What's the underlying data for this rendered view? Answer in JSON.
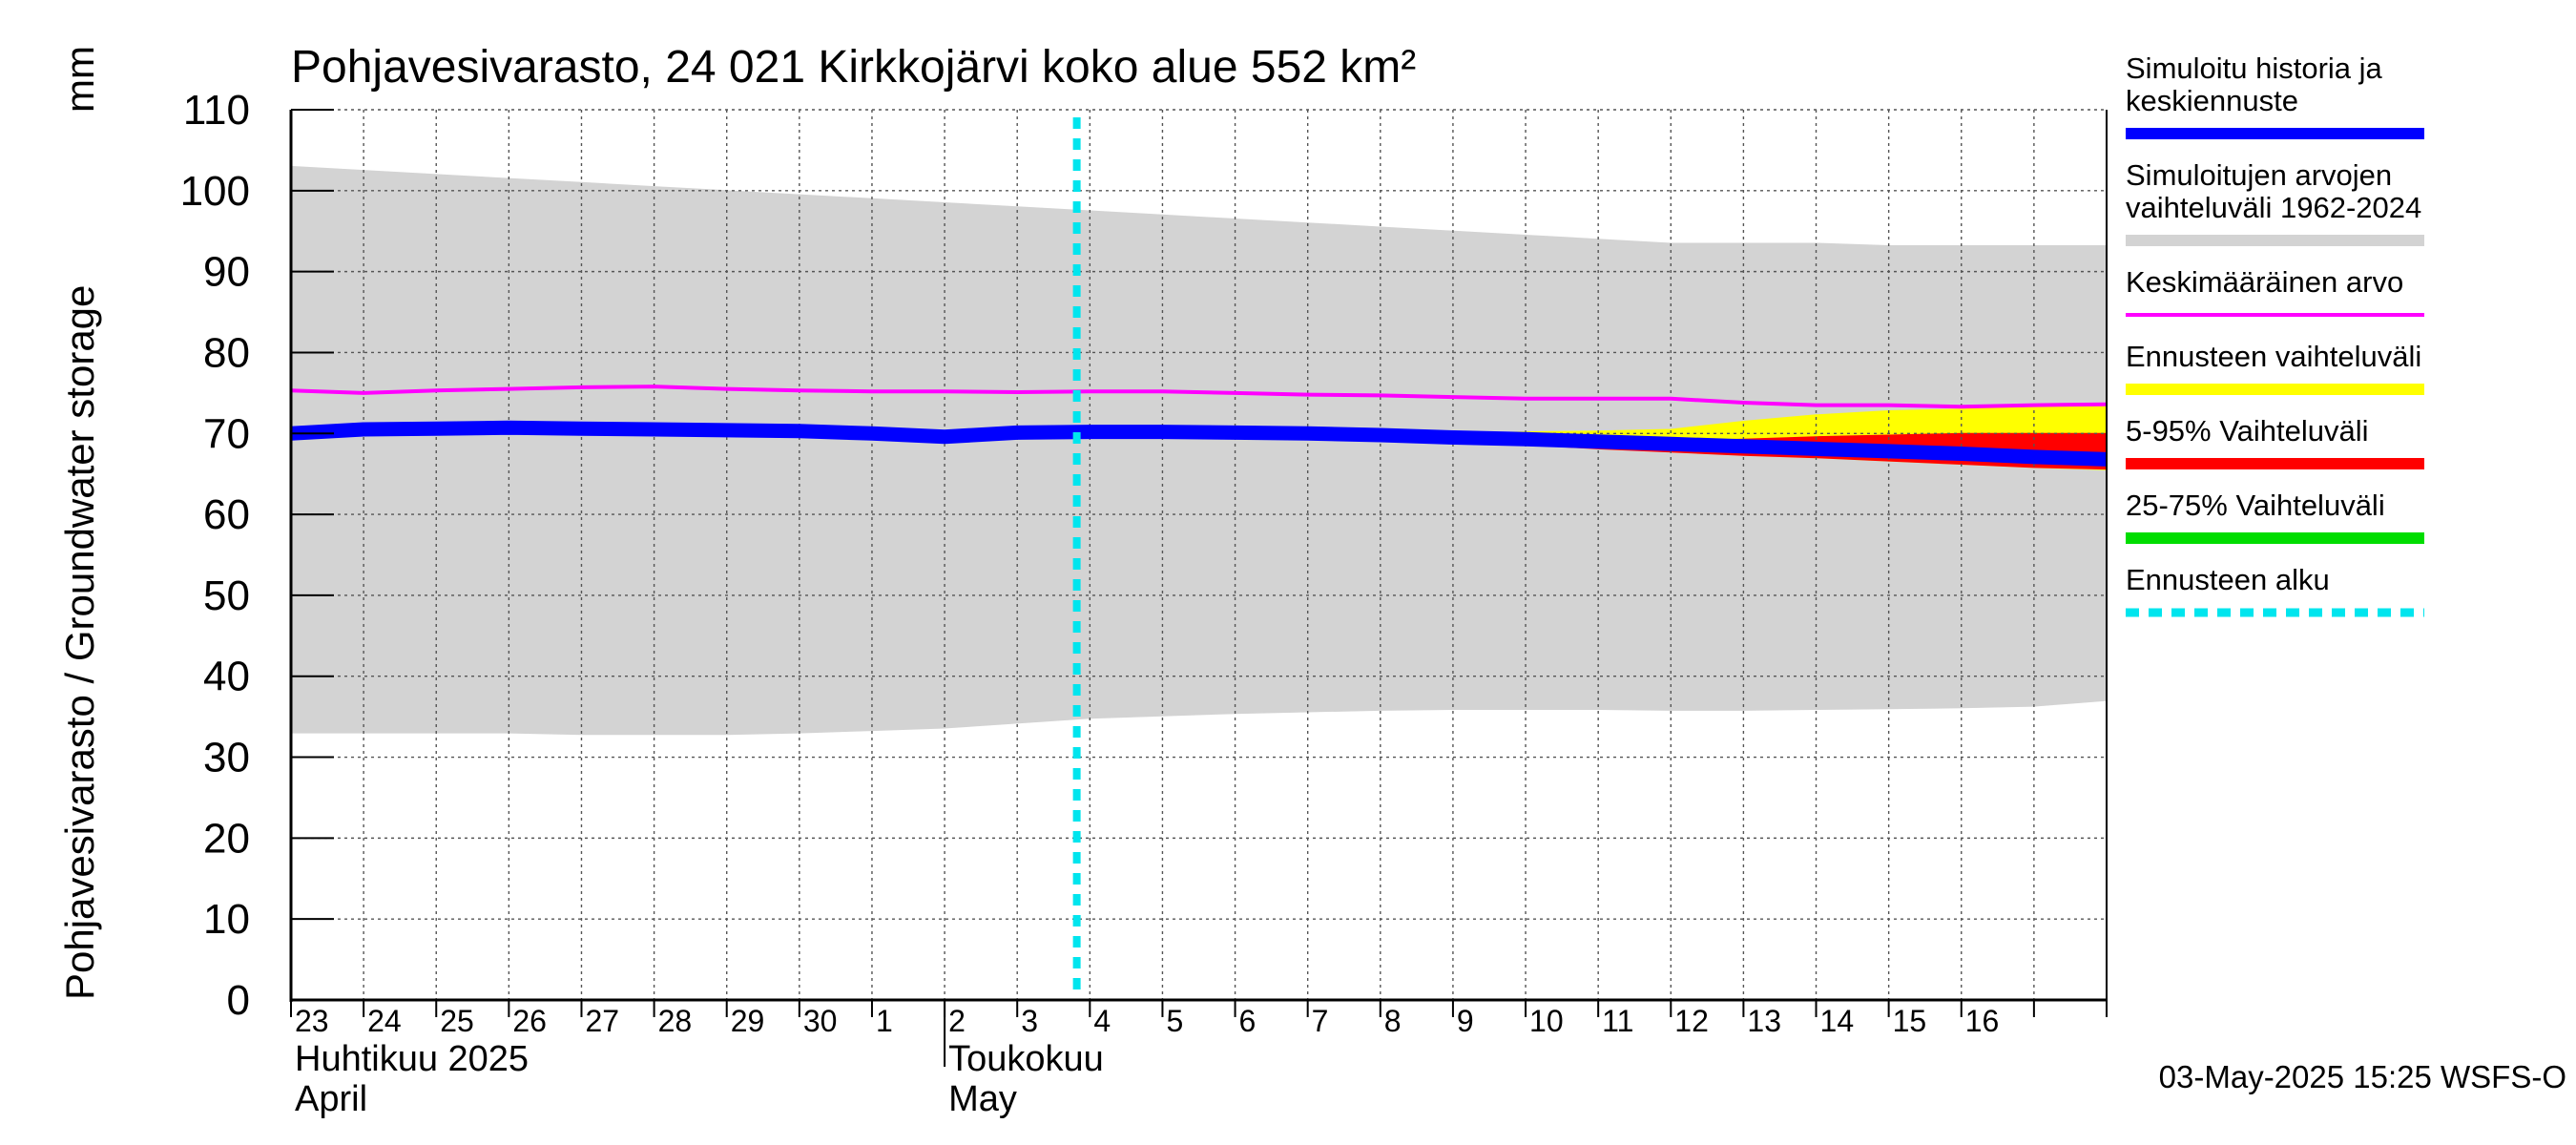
{
  "chart_data": {
    "type": "area",
    "title": "Pohjavesivarasto, 24 021 Kirkkojärvi koko alue 552 km²",
    "ylabel": "Pohjavesivarasto / Groundwater storage",
    "yunit": "mm",
    "ylim": [
      0,
      110
    ],
    "yticks": [
      0,
      10,
      20,
      30,
      40,
      50,
      60,
      70,
      80,
      90,
      100,
      110
    ],
    "grid": true,
    "x_start": "2025-04-22",
    "x_end": "2025-05-17",
    "day_labels": [
      "23",
      "24",
      "25",
      "26",
      "27",
      "28",
      "29",
      "30",
      "1",
      "2",
      "3",
      "4",
      "5",
      "6",
      "7",
      "8",
      "9",
      "10",
      "11",
      "12",
      "13",
      "14",
      "15",
      "16"
    ],
    "months": [
      {
        "fi": "Huhtikuu  2025",
        "en": "April",
        "start": "2025-04-23"
      },
      {
        "fi": "Toukokuu",
        "en": "May",
        "start": "2025-05-02"
      }
    ],
    "month_separator": "2025-05-01",
    "forecast_start": "2025-05-03",
    "x": [
      "2025-04-22",
      "2025-04-23",
      "2025-04-24",
      "2025-04-25",
      "2025-04-26",
      "2025-04-27",
      "2025-04-28",
      "2025-04-29",
      "2025-04-30",
      "2025-05-01",
      "2025-05-02",
      "2025-05-03",
      "2025-05-04",
      "2025-05-05",
      "2025-05-06",
      "2025-05-07",
      "2025-05-08",
      "2025-05-09",
      "2025-05-10",
      "2025-05-11",
      "2025-05-12",
      "2025-05-13",
      "2025-05-14",
      "2025-05-15",
      "2025-05-16",
      "2025-05-17"
    ],
    "series": [
      {
        "name": "Simuloitujen arvojen vaihteluväli 1962-2024",
        "role": "range",
        "color": "#d3d3d3",
        "upper": [
          103,
          102.5,
          102,
          101.5,
          101,
          100.5,
          100,
          99.5,
          99,
          98.5,
          98,
          97.5,
          97,
          96.5,
          96,
          95.5,
          95,
          94.5,
          94,
          93.5,
          93.5,
          93.5,
          93.2,
          93.2,
          93.2,
          93.2
        ],
        "lower": [
          33,
          33,
          33,
          33,
          32.8,
          32.8,
          32.8,
          33,
          33.3,
          33.6,
          34.2,
          34.8,
          35.1,
          35.4,
          35.6,
          35.8,
          35.9,
          35.9,
          35.9,
          35.8,
          35.8,
          35.9,
          36,
          36.1,
          36.3,
          37
        ]
      },
      {
        "name": "Ennusteen vaihteluväli",
        "role": "range",
        "color": "#ffff00",
        "upper": [
          null,
          null,
          null,
          null,
          null,
          null,
          null,
          null,
          null,
          null,
          null,
          70,
          70,
          70,
          70,
          70,
          70,
          70.2,
          70.3,
          70.5,
          71.5,
          72.3,
          72.8,
          73,
          73.3,
          73.6
        ],
        "lower": [
          null,
          null,
          null,
          null,
          null,
          null,
          null,
          null,
          null,
          null,
          null,
          70,
          70,
          70,
          69.8,
          69.6,
          69.3,
          68.8,
          68.3,
          67.8,
          67.4,
          67,
          66.6,
          66.2,
          65.8,
          65.5
        ]
      },
      {
        "name": "5-95% Vaihteluväli",
        "role": "range",
        "color": "#ff0000",
        "upper": [
          null,
          null,
          null,
          null,
          null,
          null,
          null,
          null,
          null,
          null,
          null,
          70,
          70,
          70,
          69.9,
          69.7,
          69.5,
          69.2,
          69,
          69.1,
          69.3,
          69.6,
          69.8,
          70,
          70,
          70
        ],
        "lower": [
          null,
          null,
          null,
          null,
          null,
          null,
          null,
          null,
          null,
          null,
          null,
          70,
          70,
          70,
          69.7,
          69.4,
          69.1,
          68.6,
          68.1,
          67.7,
          67.3,
          67,
          66.6,
          66.2,
          65.8,
          65.6
        ]
      },
      {
        "name": "25-75% Vaihteluväli",
        "role": "range",
        "color": "#00dd00",
        "upper": [
          null,
          null,
          null,
          null,
          null,
          null,
          null,
          null,
          null,
          null,
          null,
          70,
          70,
          70,
          69.8,
          69.6,
          69.3,
          68.9,
          68.5,
          68.2,
          67.9,
          67.6,
          67.3,
          67,
          66.7,
          66.5
        ],
        "lower": [
          null,
          null,
          null,
          null,
          null,
          null,
          null,
          null,
          null,
          null,
          null,
          70,
          70,
          70,
          69.8,
          69.6,
          69.3,
          68.9,
          68.5,
          68.2,
          67.9,
          67.6,
          67.3,
          67,
          66.7,
          66.5
        ]
      },
      {
        "name": "Keskimääräinen arvo",
        "role": "line",
        "color": "#ff00ff",
        "values": [
          75.3,
          75,
          75.3,
          75.5,
          75.7,
          75.8,
          75.5,
          75.3,
          75.2,
          75.2,
          75.1,
          75.2,
          75.2,
          75,
          74.8,
          74.7,
          74.5,
          74.3,
          74.3,
          74.3,
          73.8,
          73.5,
          73.5,
          73.3,
          73.5,
          73.6
        ]
      },
      {
        "name": "Simuloitu historia ja keskiennuste",
        "role": "line",
        "color": "#0000ff",
        "values": [
          70,
          70.5,
          70.6,
          70.7,
          70.6,
          70.5,
          70.4,
          70.3,
          70,
          69.6,
          70.1,
          70.2,
          70.2,
          70.1,
          70,
          69.8,
          69.5,
          69.3,
          69,
          68.7,
          68.4,
          68.1,
          67.8,
          67.5,
          67.1,
          66.8
        ]
      }
    ],
    "forecast_marker": {
      "name": "Ennusteen alku",
      "color": "#00e5ee"
    }
  },
  "legend": [
    {
      "label": [
        "Simuloitu historia ja",
        "keskiennuste"
      ],
      "color": "#0000ff",
      "style": "solid"
    },
    {
      "label": [
        "Simuloitujen arvojen",
        "vaihteluväli 1962-2024"
      ],
      "color": "#d3d3d3",
      "style": "solid"
    },
    {
      "label": [
        "Keskimääräinen arvo"
      ],
      "color": "#ff00ff",
      "style": "thin"
    },
    {
      "label": [
        "Ennusteen vaihteluväli"
      ],
      "color": "#ffff00",
      "style": "solid"
    },
    {
      "label": [
        "5-95% Vaihteluväli"
      ],
      "color": "#ff0000",
      "style": "solid"
    },
    {
      "label": [
        "25-75% Vaihteluväli"
      ],
      "color": "#00dd00",
      "style": "solid"
    },
    {
      "label": [
        "Ennusteen alku"
      ],
      "color": "#00e5ee",
      "style": "dashed"
    }
  ],
  "footer": "03-May-2025 15:25 WSFS-O"
}
